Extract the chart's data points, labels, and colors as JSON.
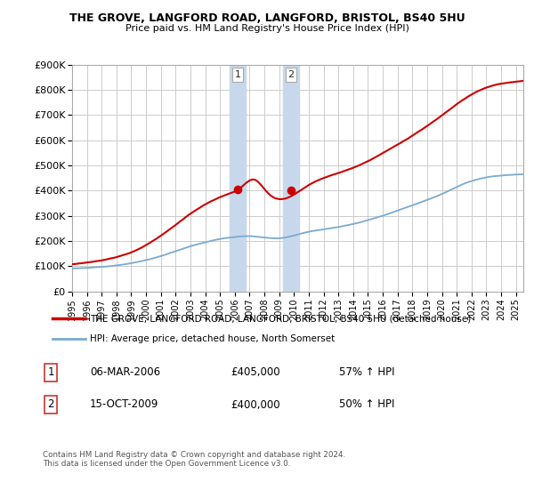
{
  "title": "THE GROVE, LANGFORD ROAD, LANGFORD, BRISTOL, BS40 5HU",
  "subtitle": "Price paid vs. HM Land Registry's House Price Index (HPI)",
  "ylabel_ticks": [
    "£0",
    "£100K",
    "£200K",
    "£300K",
    "£400K",
    "£500K",
    "£600K",
    "£700K",
    "£800K",
    "£900K"
  ],
  "ylim": [
    0,
    900000
  ],
  "xlim_start": 1995.0,
  "xlim_end": 2025.5,
  "xticks": [
    1995,
    1996,
    1997,
    1998,
    1999,
    2000,
    2001,
    2002,
    2003,
    2004,
    2005,
    2006,
    2007,
    2008,
    2009,
    2010,
    2011,
    2012,
    2013,
    2014,
    2015,
    2016,
    2017,
    2018,
    2019,
    2020,
    2021,
    2022,
    2023,
    2024,
    2025
  ],
  "xticklabels": [
    "1995",
    "1996",
    "1997",
    "1998",
    "1999",
    "2000",
    "2001",
    "2002",
    "2003",
    "2004",
    "2005",
    "2006",
    "2007",
    "2008",
    "2009",
    "2010",
    "2011",
    "2012",
    "2013",
    "2014",
    "2015",
    "2016",
    "2017",
    "2018",
    "2019",
    "2020",
    "2021",
    "2022",
    "2023",
    "2024",
    "2025"
  ],
  "legend_entries": [
    "THE GROVE, LANGFORD ROAD, LANGFORD, BRISTOL, BS40 5HU (detached house)",
    "HPI: Average price, detached house, North Somerset"
  ],
  "legend_colors": [
    "#cc0000",
    "#6699cc"
  ],
  "purchase1_date": 2006.18,
  "purchase1_price": 405000,
  "purchase2_date": 2009.79,
  "purchase2_price": 400000,
  "hpi_color": "#7aaad0",
  "price_color": "#cc0000",
  "vline_color": "#c8d8ec",
  "grid_color": "#cccccc",
  "footnote": "Contains HM Land Registry data © Crown copyright and database right 2024.\nThis data is licensed under the Open Government Licence v3.0."
}
